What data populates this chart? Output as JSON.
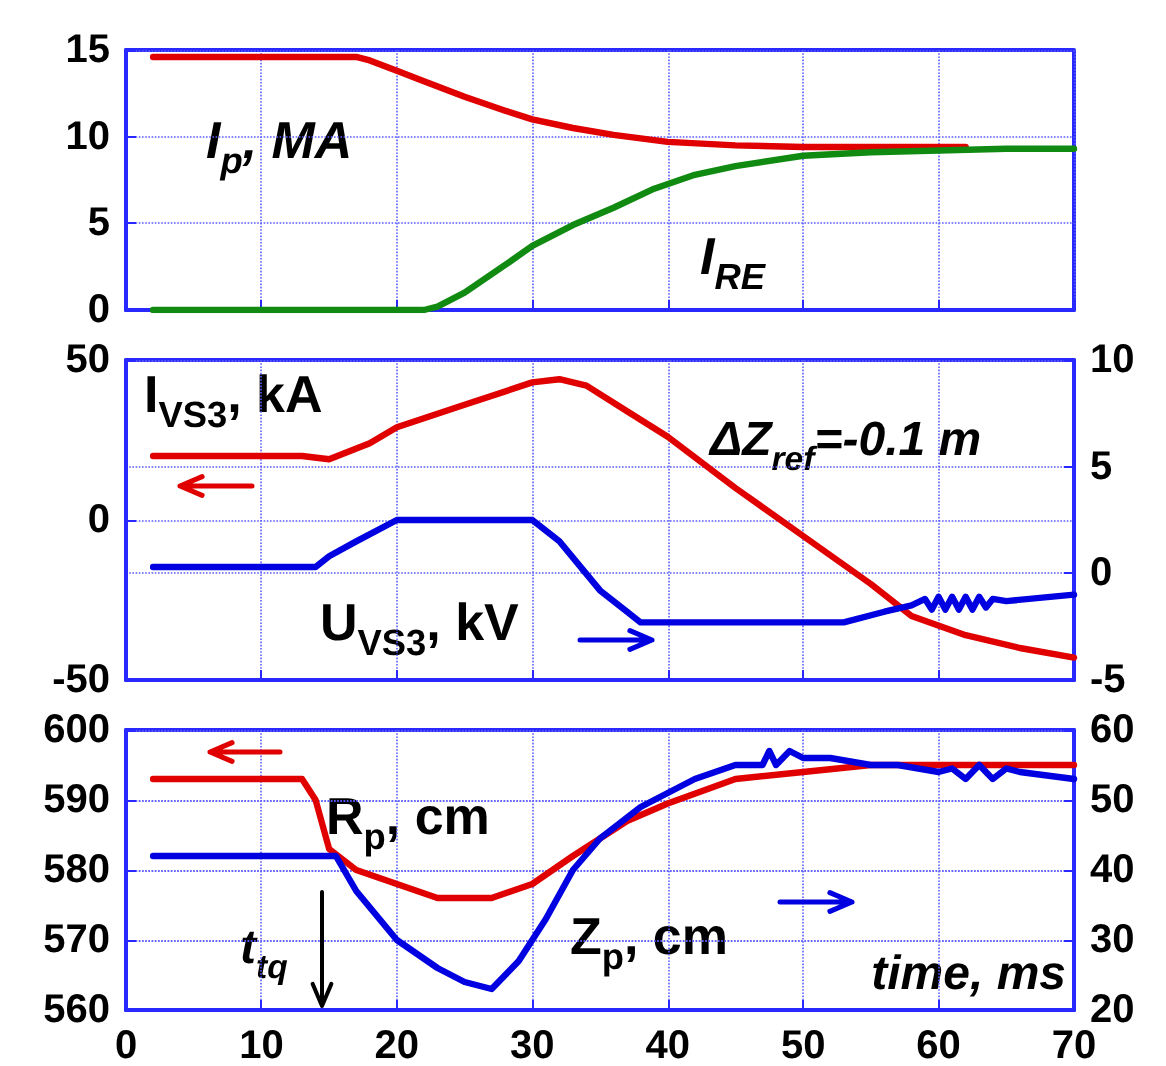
{
  "chart_data": [
    {
      "type": "line",
      "xlim": [
        0,
        70
      ],
      "xticks": [
        0,
        10,
        20,
        30,
        40,
        50,
        60,
        70
      ],
      "ylim": [
        0,
        15
      ],
      "yticks": [
        0,
        5,
        10,
        15
      ],
      "grid": true,
      "marker": "none",
      "tick_labels": "y",
      "series": [
        {
          "name": "I$_{p}$, MA",
          "color": "#e00000",
          "x": [
            2,
            17,
            18,
            20,
            22,
            25,
            28,
            30,
            33,
            36,
            40,
            45,
            50,
            55,
            62
          ],
          "values": [
            14.6,
            14.6,
            14.4,
            13.8,
            13.2,
            12.3,
            11.5,
            11.0,
            10.5,
            10.1,
            9.7,
            9.5,
            9.4,
            9.4,
            9.4
          ]
        },
        {
          "name": "I$_{RE}$",
          "color": "#108a10",
          "x": [
            2,
            22,
            23,
            25,
            28,
            30,
            33,
            36,
            39,
            42,
            45,
            50,
            55,
            60,
            65,
            70
          ],
          "values": [
            0,
            0,
            0.2,
            1.0,
            2.6,
            3.7,
            4.9,
            5.9,
            7.0,
            7.8,
            8.3,
            8.9,
            9.1,
            9.2,
            9.3,
            9.3
          ]
        }
      ]
    },
    {
      "type": "line",
      "xlim": [
        0,
        70
      ],
      "xticks": [
        0,
        10,
        20,
        30,
        40,
        50,
        60,
        70
      ],
      "ylim": [
        -50,
        50
      ],
      "yticks": [
        -50,
        0,
        50
      ],
      "y2lim": [
        -5,
        10
      ],
      "y2ticks": [
        -5,
        0,
        5,
        10
      ],
      "grid": true,
      "marker": "none",
      "tick_labels": "y",
      "annotations": [
        "ΔZ$_{ref}$=-0.1 m"
      ],
      "series": [
        {
          "name": "I$_{VS3}$, kA",
          "color": "#e00000",
          "x": [
            2,
            13,
            15,
            18,
            20,
            25,
            30,
            32,
            34,
            37,
            40,
            45,
            50,
            55,
            58,
            62,
            66,
            70
          ],
          "values": [
            20,
            20,
            19,
            24,
            29,
            36,
            43,
            44,
            42,
            34,
            26,
            10,
            -5,
            -20,
            -30,
            -36,
            -40,
            -43
          ]
        },
        {
          "name": "U$_{VS3}$, kV",
          "color": "#0000e0",
          "axis": "y2",
          "x": [
            2,
            14,
            15,
            17,
            20,
            30,
            32,
            35,
            37,
            38,
            53,
            56,
            58,
            59,
            59.5,
            60,
            60.5,
            61,
            61.5,
            62,
            62.5,
            63,
            63.5,
            64,
            65,
            70
          ],
          "values": [
            0.3,
            0.3,
            0.8,
            1.5,
            2.5,
            2.5,
            1.5,
            -0.8,
            -1.8,
            -2.3,
            -2.3,
            -1.8,
            -1.5,
            -1.2,
            -1.7,
            -1.1,
            -1.7,
            -1.1,
            -1.7,
            -1.1,
            -1.7,
            -1.1,
            -1.6,
            -1.2,
            -1.3,
            -1.0
          ]
        }
      ]
    },
    {
      "type": "line",
      "xlim": [
        0,
        70
      ],
      "xticks": [
        0,
        10,
        20,
        30,
        40,
        50,
        60,
        70
      ],
      "ylim": [
        560,
        600
      ],
      "yticks": [
        560,
        570,
        580,
        590,
        600
      ],
      "y2lim": [
        20,
        60
      ],
      "y2ticks": [
        20,
        30,
        40,
        50,
        60
      ],
      "grid": true,
      "marker": "none",
      "xlabel": "time, ms",
      "annotations": [
        "t$_{tq}$"
      ],
      "series": [
        {
          "name": "R$_{p}$, cm",
          "color": "#e00000",
          "x": [
            2,
            13,
            14,
            15,
            17,
            20,
            23,
            27,
            30,
            33,
            37,
            40,
            45,
            50,
            55,
            70
          ],
          "values": [
            593,
            593,
            590,
            583,
            580,
            578,
            576,
            576,
            578,
            582,
            587,
            589.5,
            593,
            594,
            595,
            595
          ]
        },
        {
          "name": "Z$_{p}$, cm",
          "color": "#0000e0",
          "axis": "y2",
          "x": [
            2,
            15,
            15.5,
            17,
            20,
            23,
            25,
            27,
            29,
            31,
            33,
            35,
            38,
            42,
            45,
            47,
            47.5,
            48,
            49,
            50,
            52,
            55,
            57,
            60,
            61,
            62,
            63,
            64,
            65,
            66,
            70
          ],
          "values": [
            42,
            42,
            42,
            37,
            30,
            26,
            24,
            23,
            27,
            33,
            40,
            44.5,
            49,
            53,
            55,
            55,
            57,
            55,
            57,
            56,
            56,
            55,
            55,
            54,
            54.5,
            53,
            55,
            53,
            54.5,
            54,
            53
          ]
        }
      ]
    }
  ]
}
